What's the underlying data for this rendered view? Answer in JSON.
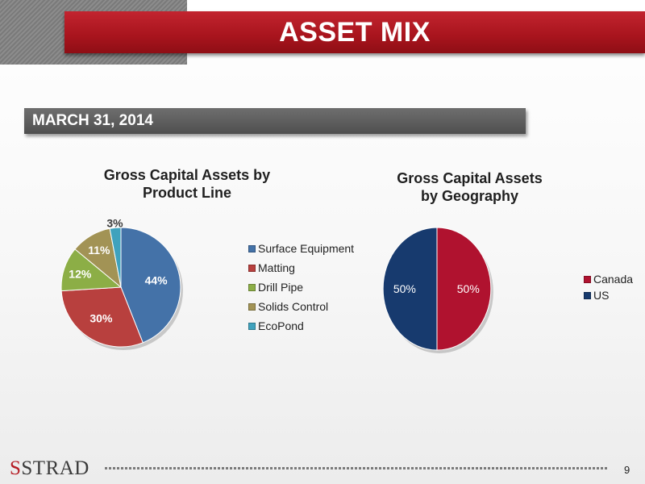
{
  "slide": {
    "title": "ASSET MIX",
    "date": "MARCH 31, 2014",
    "page_number": "9",
    "logo_text": "STRAD",
    "accent_color": "#b51c24"
  },
  "chart_data": [
    {
      "type": "pie",
      "title_lines": [
        "Gross Capital Assets by",
        "Product Line"
      ],
      "categories": [
        "Surface Equipment",
        "Matting",
        "Drill Pipe",
        "Solids Control",
        "EcoPond"
      ],
      "values": [
        44,
        30,
        12,
        11,
        3
      ],
      "labels": [
        "44%",
        "30%",
        "12%",
        "11%",
        "3%"
      ],
      "colors": [
        "#4472a8",
        "#b8403e",
        "#8cae46",
        "#a29355",
        "#3fa2bd"
      ],
      "legend_position": "right"
    },
    {
      "type": "pie",
      "title_lines": [
        "Gross Capital Assets",
        "by Geography"
      ],
      "categories": [
        "Canada",
        "US"
      ],
      "values": [
        50,
        50
      ],
      "labels": [
        "50%",
        "50%"
      ],
      "colors": [
        "#b0122f",
        "#173a6e"
      ],
      "legend_position": "right"
    }
  ]
}
